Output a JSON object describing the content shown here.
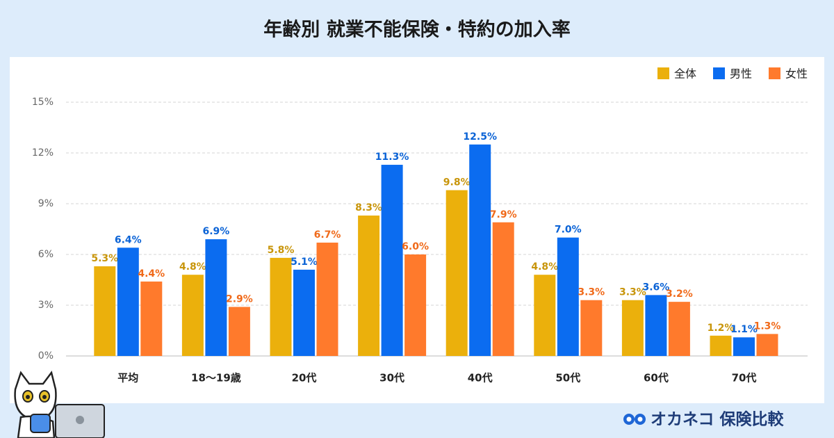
{
  "chart_data": {
    "type": "bar",
    "title": "年齢別 就業不能保険・特約の加入率",
    "categories": [
      "平均",
      "18〜19歳",
      "20代",
      "30代",
      "40代",
      "50代",
      "60代",
      "70代"
    ],
    "series": [
      {
        "name": "全体",
        "color": "#ebb00c",
        "label_color": "#c8950a",
        "values": [
          5.3,
          4.8,
          5.8,
          8.3,
          9.8,
          4.8,
          3.3,
          1.2
        ],
        "value_labels": [
          "5.3%",
          "4.8%",
          "5.8%",
          "8.3%",
          "9.8%",
          "4.8%",
          "3.3%",
          "1.2%"
        ]
      },
      {
        "name": "男性",
        "color": "#0b6cf0",
        "label_color": "#0b63d6",
        "values": [
          6.4,
          6.9,
          5.1,
          11.3,
          12.5,
          7.0,
          3.6,
          1.1
        ],
        "value_labels": [
          "6.4%",
          "6.9%",
          "5.1%",
          "11.3%",
          "12.5%",
          "7.0%",
          "3.6%",
          "1.1%"
        ]
      },
      {
        "name": "女性",
        "color": "#ff7a2c",
        "label_color": "#f06a1a",
        "values": [
          4.4,
          2.9,
          6.7,
          6.0,
          7.9,
          3.3,
          3.2,
          1.3
        ],
        "value_labels": [
          "4.4%",
          "2.9%",
          "6.7%",
          "6.0%",
          "7.9%",
          "3.3%",
          "3.2%",
          "1.3%"
        ]
      }
    ],
    "ylim": [
      0,
      15
    ],
    "yticks": [
      {
        "value": 0,
        "label": "0%"
      },
      {
        "value": 3,
        "label": "3%"
      },
      {
        "value": 6,
        "label": "6%"
      },
      {
        "value": 9,
        "label": "9%"
      },
      {
        "value": 12,
        "label": "12%"
      },
      {
        "value": 15,
        "label": "15%"
      }
    ],
    "grid": true,
    "legend": "top-right"
  },
  "brand": "オカネコ 保険比較"
}
